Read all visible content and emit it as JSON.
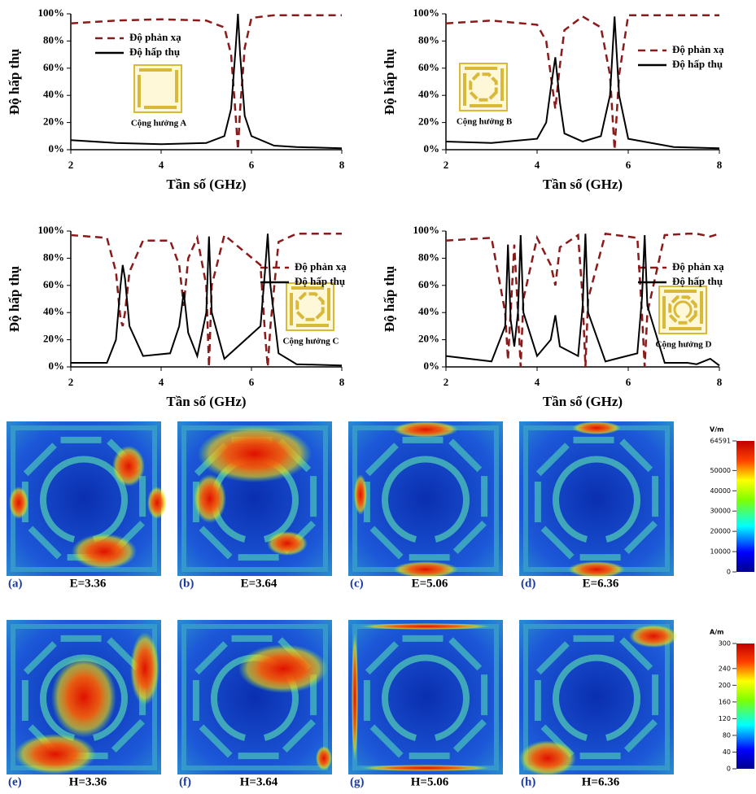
{
  "chart_data": [
    {
      "type": "line",
      "x_label": "Tần số (GHz)",
      "y_label": "Độ hấp thụ",
      "annotation": "Cộng hưởng A",
      "legend": "upper left",
      "xlim": [
        2,
        8
      ],
      "xticks": [
        2,
        4,
        6,
        8
      ],
      "ylim": [
        0,
        100
      ],
      "yticks": [
        {
          "value": 0,
          "label": "0%"
        },
        {
          "value": 20,
          "label": "20%"
        },
        {
          "value": 40,
          "label": "40%"
        },
        {
          "value": 60,
          "label": "60%"
        },
        {
          "value": 80,
          "label": "80%"
        },
        {
          "value": 100,
          "label": "100%"
        }
      ],
      "x": [
        2,
        3,
        4,
        5,
        5.4,
        5.55,
        5.65,
        5.7,
        5.75,
        5.85,
        6,
        6.5,
        7,
        8
      ],
      "series": [
        {
          "name": "Độ phản xạ",
          "color": "#8b1a1a",
          "dashed": true,
          "values": [
            93,
            95,
            96,
            95,
            90,
            70,
            25,
            0,
            30,
            75,
            97,
            99,
            99,
            99
          ]
        },
        {
          "name": "Độ hấp thụ",
          "color": "#000000",
          "dashed": false,
          "values": [
            7,
            5,
            4,
            5,
            10,
            30,
            75,
            100,
            70,
            25,
            10,
            3,
            2,
            1
          ]
        }
      ]
    },
    {
      "type": "line",
      "x_label": "Tần số (GHz)",
      "y_label": "Độ hấp thụ",
      "annotation": "Cộng hưởng B",
      "legend": "right",
      "xlim": [
        2,
        8
      ],
      "xticks": [
        2,
        4,
        6,
        8
      ],
      "ylim": [
        0,
        100
      ],
      "yticks": [
        {
          "value": 0,
          "label": "0%"
        },
        {
          "value": 20,
          "label": "20%"
        },
        {
          "value": 40,
          "label": "40%"
        },
        {
          "value": 60,
          "label": "60%"
        },
        {
          "value": 80,
          "label": "80%"
        },
        {
          "value": 100,
          "label": "100%"
        }
      ],
      "x": [
        2,
        3,
        4,
        4.2,
        4.3,
        4.4,
        4.5,
        4.6,
        5,
        5.4,
        5.6,
        5.7,
        5.8,
        6,
        7,
        8
      ],
      "series": [
        {
          "name": "Độ phản xạ",
          "color": "#8b1a1a",
          "dashed": true,
          "values": [
            93,
            95,
            92,
            80,
            55,
            30,
            62,
            88,
            98,
            90,
            55,
            0,
            55,
            99,
            99,
            99
          ]
        },
        {
          "name": "Độ hấp thụ",
          "color": "#000000",
          "dashed": false,
          "values": [
            6,
            5,
            8,
            20,
            45,
            68,
            35,
            12,
            6,
            10,
            40,
            98,
            40,
            8,
            2,
            1
          ]
        }
      ]
    },
    {
      "type": "line",
      "x_label": "Tần số (GHz)",
      "y_label": "Độ hấp thụ",
      "annotation": "Cộng hưởng C",
      "legend": "right",
      "xlim": [
        2,
        8
      ],
      "xticks": [
        2,
        4,
        6,
        8
      ],
      "ylim": [
        0,
        100
      ],
      "yticks": [
        {
          "value": 0,
          "label": "0%"
        },
        {
          "value": 20,
          "label": "20%"
        },
        {
          "value": 40,
          "label": "40%"
        },
        {
          "value": 60,
          "label": "60%"
        },
        {
          "value": 80,
          "label": "80%"
        },
        {
          "value": 100,
          "label": "100%"
        }
      ],
      "x": [
        2,
        2.8,
        3.0,
        3.1,
        3.15,
        3.2,
        3.3,
        3.6,
        4.2,
        4.4,
        4.5,
        4.6,
        4.8,
        5.0,
        5.06,
        5.12,
        5.4,
        6.2,
        6.3,
        6.36,
        6.42,
        6.6,
        7,
        8
      ],
      "series": [
        {
          "name": "Độ phản xạ",
          "color": "#8b1a1a",
          "dashed": true,
          "values": [
            97,
            95,
            70,
            35,
            30,
            40,
            70,
            93,
            93,
            75,
            45,
            80,
            95,
            60,
            0,
            60,
            97,
            75,
            25,
            0,
            30,
            92,
            98,
            98
          ]
        },
        {
          "name": "Độ hấp thụ",
          "color": "#000000",
          "dashed": false,
          "values": [
            3,
            3,
            20,
            60,
            75,
            65,
            30,
            8,
            10,
            30,
            55,
            25,
            8,
            40,
            96,
            40,
            6,
            30,
            70,
            98,
            60,
            10,
            2,
            1
          ]
        }
      ]
    },
    {
      "type": "line",
      "x_label": "Tần số (GHz)",
      "y_label": "Độ hấp thụ",
      "annotation": "Cộng hưởng D",
      "legend": "right",
      "xlim": [
        2,
        8
      ],
      "xticks": [
        2,
        4,
        6,
        8
      ],
      "ylim": [
        0,
        100
      ],
      "yticks": [
        {
          "value": 0,
          "label": "0%"
        },
        {
          "value": 20,
          "label": "20%"
        },
        {
          "value": 40,
          "label": "40%"
        },
        {
          "value": 60,
          "label": "60%"
        },
        {
          "value": 80,
          "label": "80%"
        },
        {
          "value": 100,
          "label": "100%"
        }
      ],
      "x": [
        2,
        3,
        3.3,
        3.36,
        3.42,
        3.5,
        3.58,
        3.64,
        3.7,
        4,
        4.3,
        4.4,
        4.5,
        4.9,
        5.0,
        5.06,
        5.12,
        5.5,
        6.2,
        6.3,
        6.36,
        6.42,
        6.8,
        7.3,
        7.5,
        7.8,
        8
      ],
      "series": [
        {
          "name": "Độ phản xạ",
          "color": "#8b1a1a",
          "dashed": true,
          "values": [
            93,
            95,
            40,
            5,
            40,
            90,
            40,
            0,
            50,
            95,
            75,
            60,
            88,
            97,
            50,
            0,
            50,
            98,
            95,
            40,
            0,
            40,
            97,
            98,
            98,
            96,
            98
          ]
        },
        {
          "name": "Độ hấp thụ",
          "color": "#000000",
          "dashed": false,
          "values": [
            8,
            4,
            30,
            90,
            35,
            15,
            40,
            97,
            40,
            8,
            20,
            38,
            15,
            8,
            45,
            98,
            40,
            4,
            10,
            50,
            97,
            45,
            3,
            3,
            2,
            6,
            1
          ]
        }
      ]
    }
  ],
  "field_maps": {
    "rows": [
      {
        "panels": [
          {
            "letter": "(a)",
            "caption": "E=3.36"
          },
          {
            "letter": "(b)",
            "caption": "E=3.64"
          },
          {
            "letter": "(c)",
            "caption": "E=5.06"
          },
          {
            "letter": "(d)",
            "caption": "E=6.36"
          }
        ],
        "colorbar": {
          "unit": "V/m",
          "lim": [
            0,
            64591
          ],
          "ticks": [
            0,
            10000,
            20000,
            30000,
            40000,
            50000,
            64591
          ]
        }
      },
      {
        "panels": [
          {
            "letter": "(e)",
            "caption": "H=3.36"
          },
          {
            "letter": "(f)",
            "caption": "H=3.64"
          },
          {
            "letter": "(g)",
            "caption": "H=5.06"
          },
          {
            "letter": "(h)",
            "caption": "H=6.36"
          }
        ],
        "colorbar": {
          "unit": "A/m",
          "lim": [
            0,
            300
          ],
          "ticks": [
            0,
            40,
            80,
            120,
            160,
            200,
            240,
            300
          ]
        }
      }
    ]
  }
}
